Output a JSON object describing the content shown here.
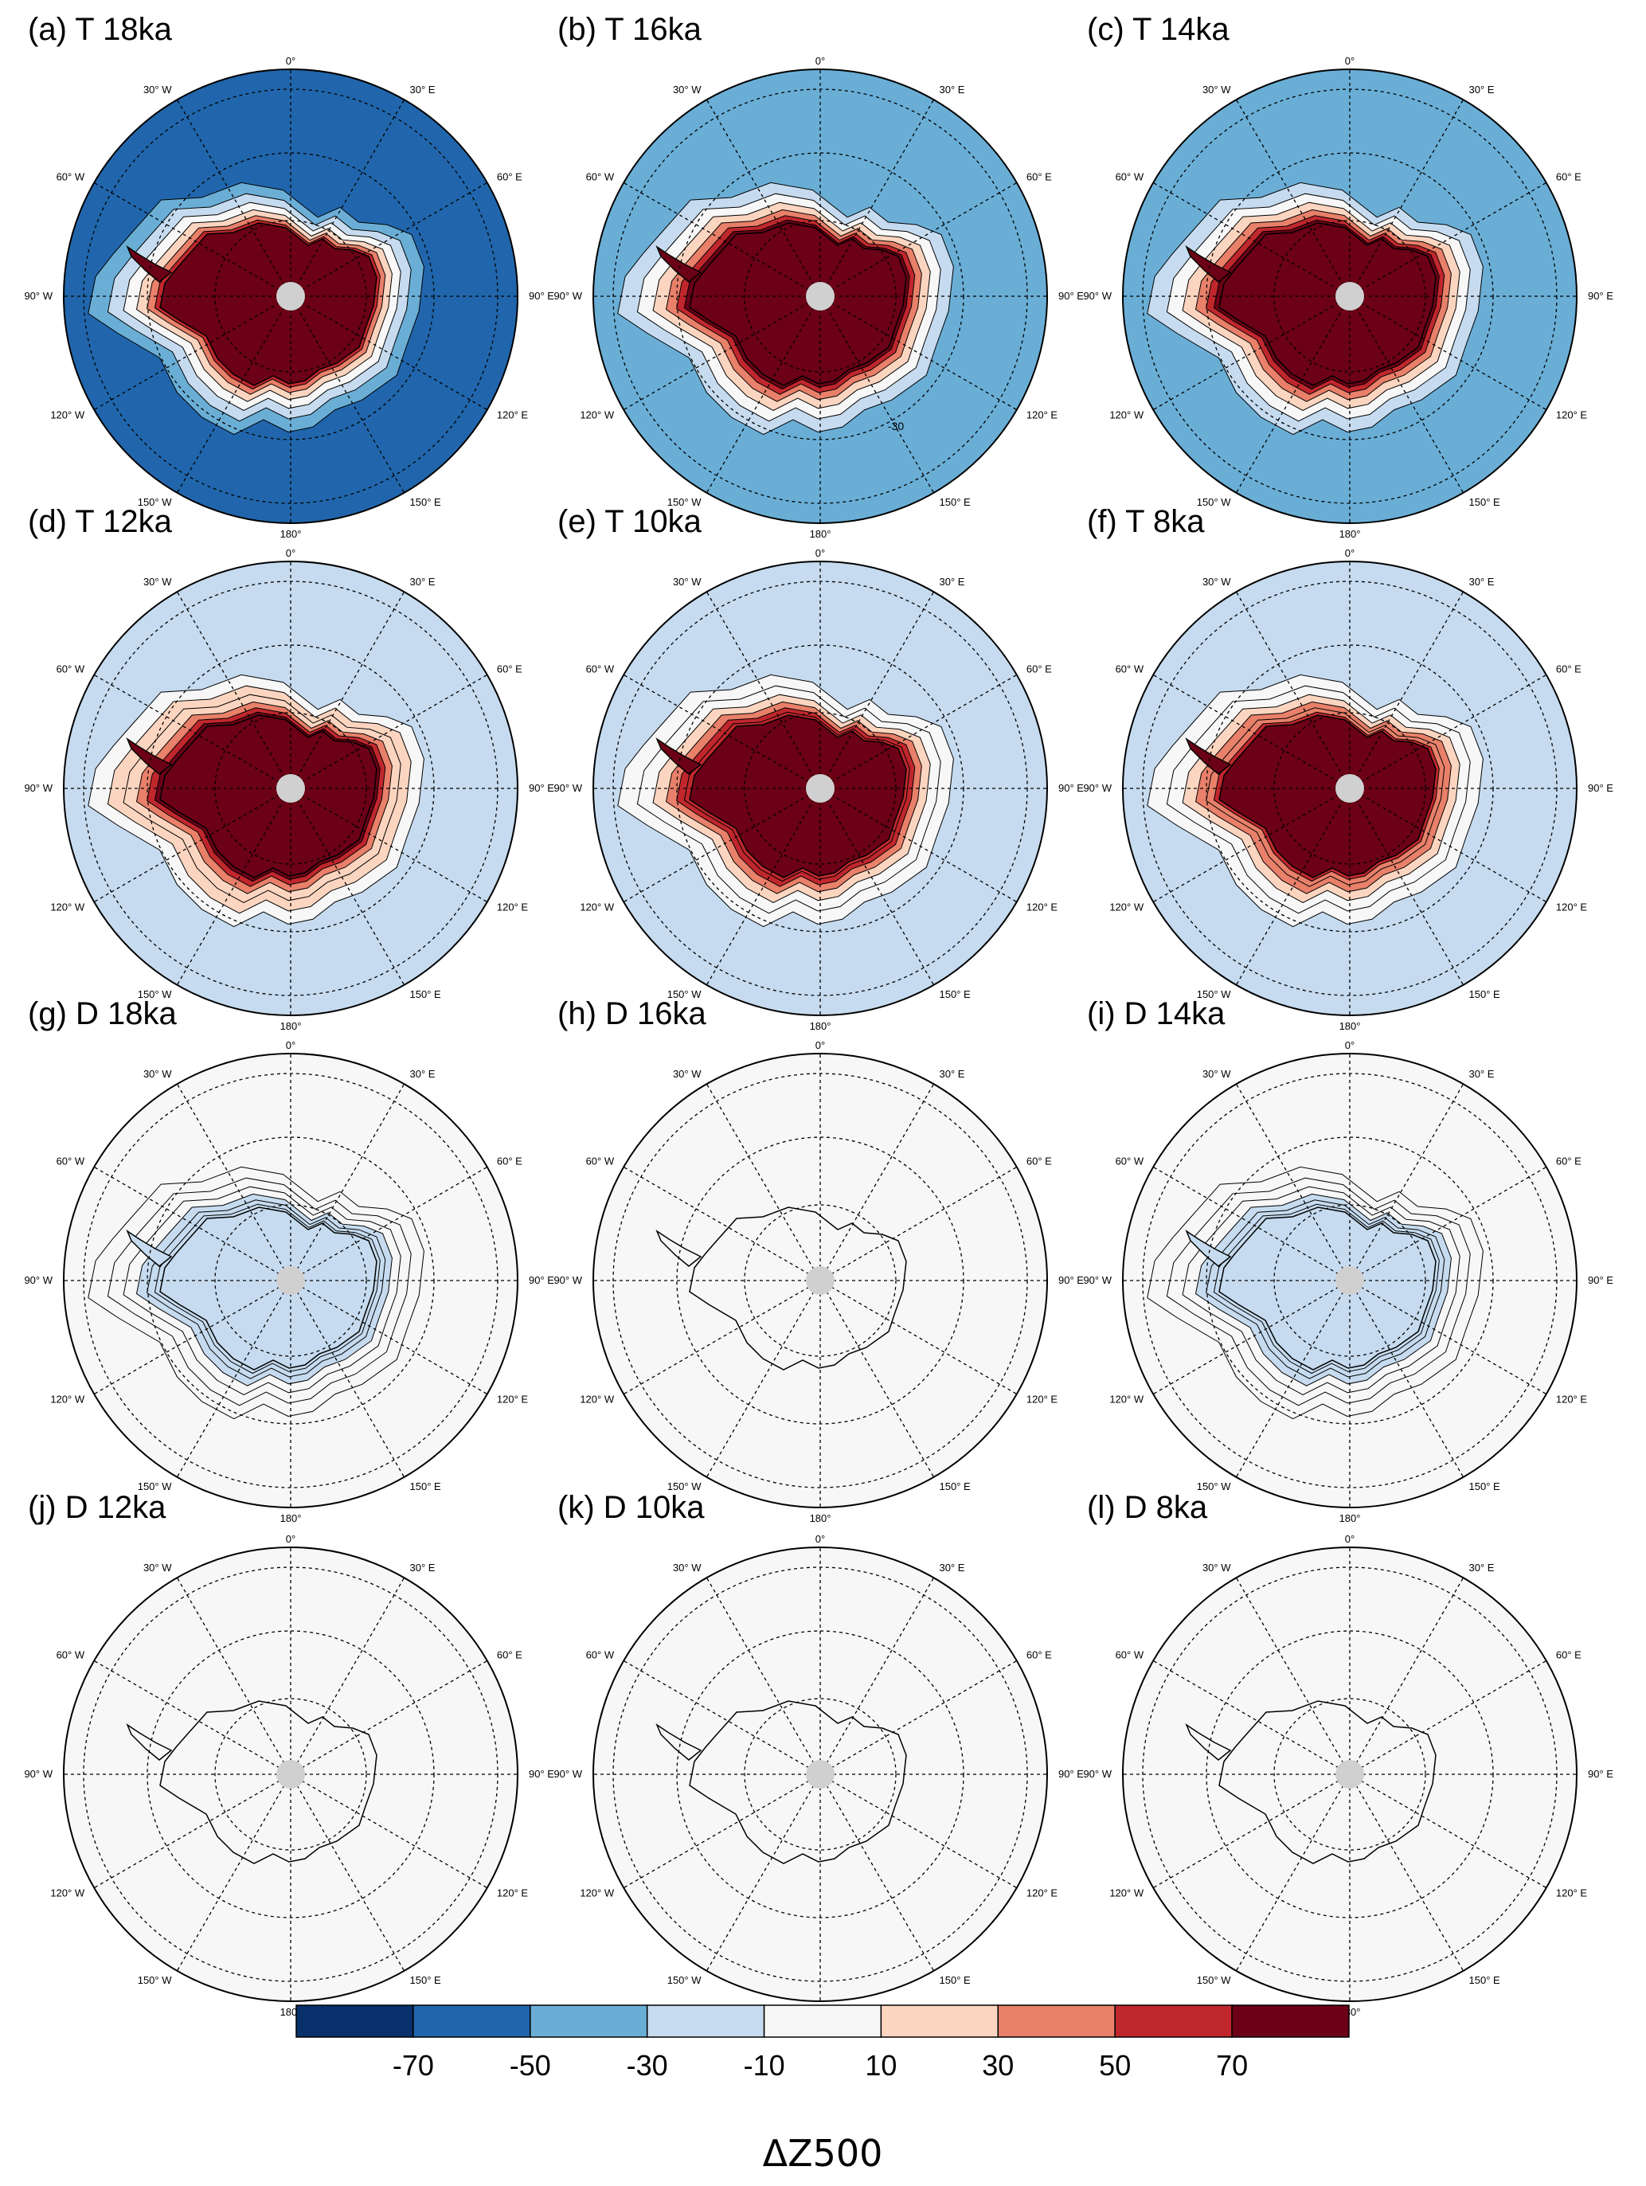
{
  "colors": {
    "levels": [
      "#08306b",
      "#2166ac",
      "#4393c3",
      "#92c5de",
      "#d1e5f0",
      "#f7f7f7",
      "#fddbc7",
      "#f4a582",
      "#d6604d",
      "#b2182b",
      "#67001f"
    ],
    "bins": [
      "#08306b",
      "#2166ac",
      "#6aaed6",
      "#c6dbef",
      "#f7f7f7",
      "#fcd5c0",
      "#e8806a",
      "#c0272d",
      "#6b0016"
    ],
    "pole": "#d0d0d0",
    "grid": "#000000"
  },
  "lon_labels": {
    "top": "0°",
    "bottom": "180°",
    "left": [
      "30° W",
      "60° W",
      "90° W",
      "120° W",
      "150° W"
    ],
    "right": [
      "30° E",
      "60° E",
      "90° E",
      "120° E",
      "150° E"
    ]
  },
  "panels": [
    {
      "id": "a",
      "title": "(a) T 18ka",
      "ocean": -70,
      "land": 90,
      "annotation": ""
    },
    {
      "id": "b",
      "title": "(b) T 16ka",
      "ocean": -40,
      "land": 90,
      "annotation": "-30"
    },
    {
      "id": "c",
      "title": "(c) T 14ka",
      "ocean": -40,
      "land": 90,
      "annotation": ""
    },
    {
      "id": "d",
      "title": "(d) T 12ka",
      "ocean": -20,
      "land": 90,
      "annotation": ""
    },
    {
      "id": "e",
      "title": "(e) T 10ka",
      "ocean": -20,
      "land": 80,
      "annotation": ""
    },
    {
      "id": "f",
      "title": "(f) T 8ka",
      "ocean": -20,
      "land": 70,
      "annotation": ""
    },
    {
      "id": "g",
      "title": "(g) D 18ka",
      "ocean": 0,
      "land": -20,
      "annotation": ""
    },
    {
      "id": "h",
      "title": "(h) D 16ka",
      "ocean": 0,
      "land": 0,
      "annotation": ""
    },
    {
      "id": "i",
      "title": "(i) D 14ka",
      "ocean": 0,
      "land": -20,
      "annotation": ""
    },
    {
      "id": "j",
      "title": "(j) D 12ka",
      "ocean": 0,
      "land": 0,
      "annotation": ""
    },
    {
      "id": "k",
      "title": "(k) D 10ka",
      "ocean": 0,
      "land": 0,
      "annotation": ""
    },
    {
      "id": "l",
      "title": "(l) D 8ka",
      "ocean": 0,
      "land": 0,
      "annotation": ""
    }
  ],
  "colorbar": {
    "labels": [
      "-70",
      "-50",
      "-30",
      "-10",
      "10",
      "30",
      "50",
      "70"
    ],
    "title": "ΔZ500"
  }
}
